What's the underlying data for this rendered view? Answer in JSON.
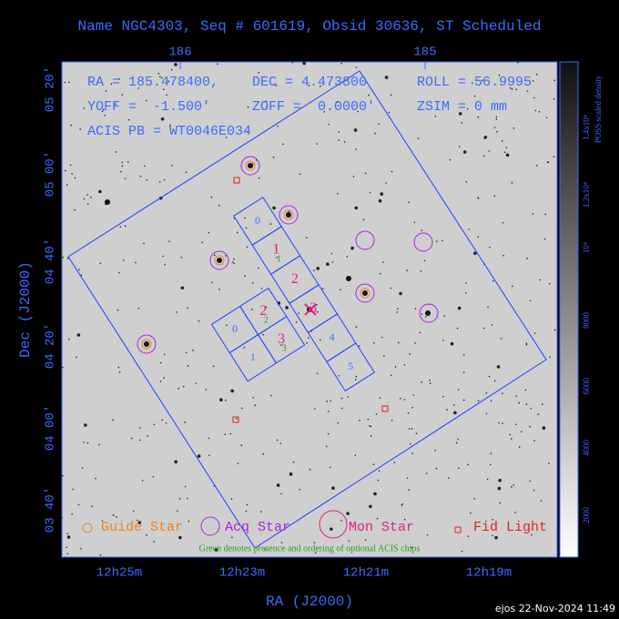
{
  "title": "Name NGC4303, Seq # 601619, Obsid 30636, ST Scheduled",
  "top_ticks": [
    "186",
    "185"
  ],
  "info": [
    "RA = 185.478400,",
    "DEC = 4.473800",
    "ROLL = 56.9995",
    "YOFF =  -1.500'",
    "ZOFF =  0.0000'",
    "ZSIM = 0 mm",
    "ACIS PB = WT0046E034"
  ],
  "left_ticks": [
    "05 20'",
    "05 00'",
    "04 40'",
    "04 20'",
    "04 00'",
    "03 40'"
  ],
  "bottom_ticks": [
    "12h25m",
    "12h23m",
    "12h21m",
    "12h19m"
  ],
  "x_label": "RA (J2000)",
  "y_label": "Dec (J2000)",
  "chips": [
    {
      "label": "0",
      "color": "#3a6cff"
    },
    {
      "label": "1",
      "color": "#e0218a",
      "optional": "1"
    },
    {
      "label": "2",
      "color": "#e0218a"
    },
    {
      "label": "3",
      "color": "#e0218a"
    },
    {
      "label": "4",
      "color": "#3a6cff"
    },
    {
      "label": "5",
      "color": "#3a6cff"
    },
    {
      "label": "0",
      "color": "#3a6cff"
    },
    {
      "label": "1",
      "color": "#3a6cff"
    },
    {
      "label": "2",
      "color": "#e0218a",
      "optional": "2"
    },
    {
      "label": "3",
      "color": "#e0218a",
      "optional": "3"
    }
  ],
  "legend": [
    "Guide Star",
    "Acq Star",
    "Mon Star",
    "Fid Light"
  ],
  "note": "Green denotes presence and ordering of optional ACIS chips",
  "colorbar_ticks": [
    "1.4x10⁴",
    "1.2x10⁴",
    "10⁴",
    "8000",
    "6000",
    "4000",
    "2000"
  ],
  "colorbar_label": "POSS scaled density",
  "footer": "ejos 22-Nov-2024 11:49"
}
